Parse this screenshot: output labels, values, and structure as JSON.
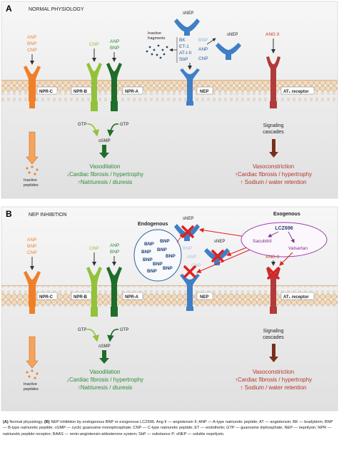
{
  "colors": {
    "anp": "#f07f2a",
    "cnp": "#93c23a",
    "npr_a": "#1e6d2a",
    "nep": "#3f7fc6",
    "ang": "#c0392b",
    "green_text": "#2e8b3a",
    "red_text": "#b5352c",
    "purple": "#7b2d8e",
    "cross": "#e02020",
    "membrane": "#f1d7b8",
    "panel_top": "#f5f5f5",
    "panel_bottom": "#e3e3e3",
    "ellipse": "#2d5d9e"
  },
  "panel_a": {
    "letter": "A",
    "title": "NORMAL PHYSIOLOGY",
    "ligands_left": [
      "ANP",
      "BNP",
      "CNP"
    ],
    "cnp_label": "CNP",
    "ligands_npra": [
      "ANP",
      "BNP"
    ],
    "receptors": {
      "npr_c": "NPR-C",
      "npr_b": "NPR-B",
      "npr_a": "NPR-A",
      "nep": "NEP",
      "at1": "AT₁ receptor"
    },
    "snep_top": "sNEP",
    "snep_side": "sNEP",
    "fragments_label": [
      "Inactive",
      "fragments"
    ],
    "substrates_left": [
      "BK",
      "ET-1",
      "AT-I-II",
      "SbP"
    ],
    "substrates_right": [
      "BNP",
      "ANP",
      "CNP"
    ],
    "ang_label": "ANG II",
    "gtp_left": "GTP",
    "gtp_right": "GTP",
    "cgmp": "cGMP",
    "inactive_peptides": [
      "Inactive",
      "peptides"
    ],
    "signaling": [
      "Signaling",
      "cascades"
    ],
    "effects_green": [
      "Vasodilation",
      "↓Cardiac fibrosis / hypertrophy",
      "↑Natriuresis / diuresis"
    ],
    "effects_red": [
      "Vasoconstriction",
      "↑Cardiac fibrosis / hypertrophy",
      "↑ Sodium / water retention"
    ]
  },
  "panel_b": {
    "letter": "B",
    "title": "NEP INHIBITION",
    "ligands_left": [
      "ANP",
      "BNP",
      "CNP"
    ],
    "cnp_label": "CNP",
    "ligands_npra": [
      "ANP",
      "BNP"
    ],
    "receptors": {
      "npr_c": "NPR-C",
      "npr_b": "NPR-B",
      "npr_a": "NPR-A",
      "nep": "NEP",
      "at1": "AT₁ receptor"
    },
    "endogenous": "Endogenous",
    "exogenous": "Exogenous",
    "bnp_cluster": [
      "BNP",
      "BNP",
      "BNP",
      "BNP",
      "BNP",
      "BNP",
      "BNP",
      "BNP",
      "BNP"
    ],
    "snep_top": "sNEP",
    "snep_side": "sNEP",
    "faded_substrates": [
      "BNP",
      "ANP",
      "CNP"
    ],
    "lcz": "LCZ696",
    "sacubitril": "Sacubitril",
    "valsartan": "Valsartan",
    "ang_label": "ANG II",
    "gtp_left": "GTP",
    "gtp_right": "GTP",
    "cgmp": "cGMP",
    "inactive_peptides": [
      "Inactive",
      "peptides"
    ],
    "signaling": [
      "Signaling",
      "cascades"
    ],
    "effects_green": [
      "Vasodilation",
      "↓Cardiac fibrosis / hypertrophy",
      "↑Natriuresis / diuresis"
    ],
    "effects_red": [
      "Vasoconstriction",
      "↑Cardiac fibrosis / hypertrophy",
      "↑ Sodium / water retention"
    ]
  },
  "caption": {
    "a_label": "(A)",
    "a_text": " Normal physiology. ",
    "b_label": "(B)",
    "b_text": " NEP inhibition by endogenous BNP or exogenous LCZ696. Ang II — angiotensin II; ANP — A-type natriuretic peptide; AT — angiotensin; BK — bradykinin; BNP — B-type natriuretic peptide; cGMP — cyclic guanosine monophosphate; CNP — C-type natriuretic peptide; ET — endothelin; GTP — guanosine triphosphate; NEP — neprilysin; NPR — natriuretic peptide receptor; RAAS — renin-angiotensin-aldosterone system; SbP — substance P; sNEP — soluble neprilysin."
  }
}
